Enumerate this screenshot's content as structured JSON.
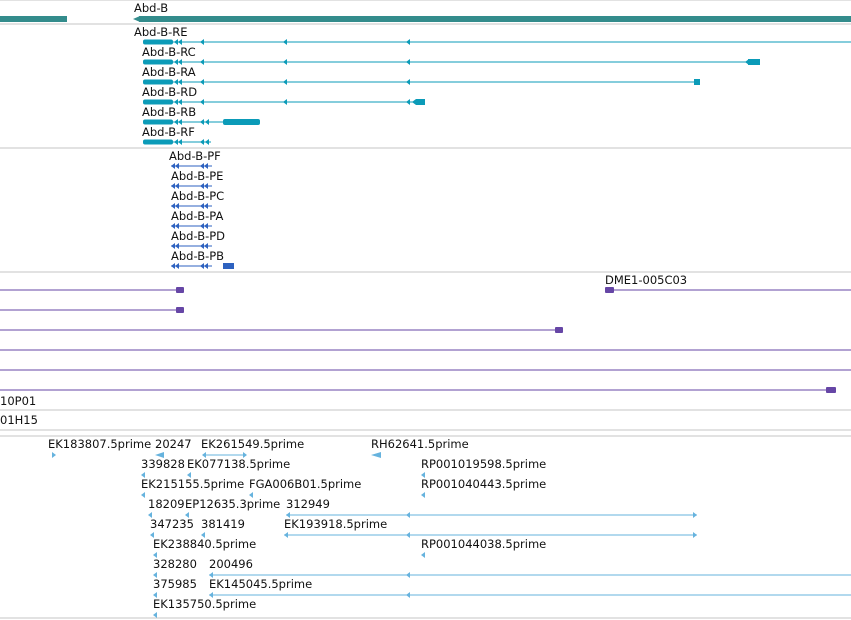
{
  "colors": {
    "gene": "#338c8c",
    "transcript": "#0b9bb8",
    "protein": "#2e62c0",
    "clone": "#6646a6",
    "est": "#66b3de",
    "divider": "#c4c4c4",
    "label": "#111111"
  },
  "gene": {
    "label": "Abd-B"
  },
  "transcripts": [
    {
      "label": "Abd-B-RE"
    },
    {
      "label": "Abd-B-RC"
    },
    {
      "label": "Abd-B-RA"
    },
    {
      "label": "Abd-B-RD"
    },
    {
      "label": "Abd-B-RB"
    },
    {
      "label": "Abd-B-RF"
    }
  ],
  "proteins": [
    {
      "label": "Abd-B-PF"
    },
    {
      "label": "Abd-B-PE"
    },
    {
      "label": "Abd-B-PC"
    },
    {
      "label": "Abd-B-PA"
    },
    {
      "label": "Abd-B-PD"
    },
    {
      "label": "Abd-B-PB"
    }
  ],
  "clones": [
    {
      "label": "DME1-005C03"
    },
    {
      "label": "10P01"
    },
    {
      "label": "01H15"
    }
  ],
  "ests": [
    {
      "label": "EK183807.5prime"
    },
    {
      "label": "20247"
    },
    {
      "label": "EK261549.5prime"
    },
    {
      "label": "RH62641.5prime"
    },
    {
      "label": "339828"
    },
    {
      "label": "EK077138.5prime"
    },
    {
      "label": "RP001019598.5prime"
    },
    {
      "label": "EK215155.5prime"
    },
    {
      "label": "FGA006B01.5prime"
    },
    {
      "label": "RP001040443.5prime"
    },
    {
      "label": "18209"
    },
    {
      "label": "EP12635.3prime"
    },
    {
      "label": "312949"
    },
    {
      "label": "347235"
    },
    {
      "label": "381419"
    },
    {
      "label": "EK193918.5prime"
    },
    {
      "label": "EK238840.5prime"
    },
    {
      "label": "RP001044038.5prime"
    },
    {
      "label": "328280"
    },
    {
      "label": "200496"
    },
    {
      "label": "375985"
    },
    {
      "label": "EK145045.5prime"
    },
    {
      "label": "EK135750.5prime"
    }
  ]
}
